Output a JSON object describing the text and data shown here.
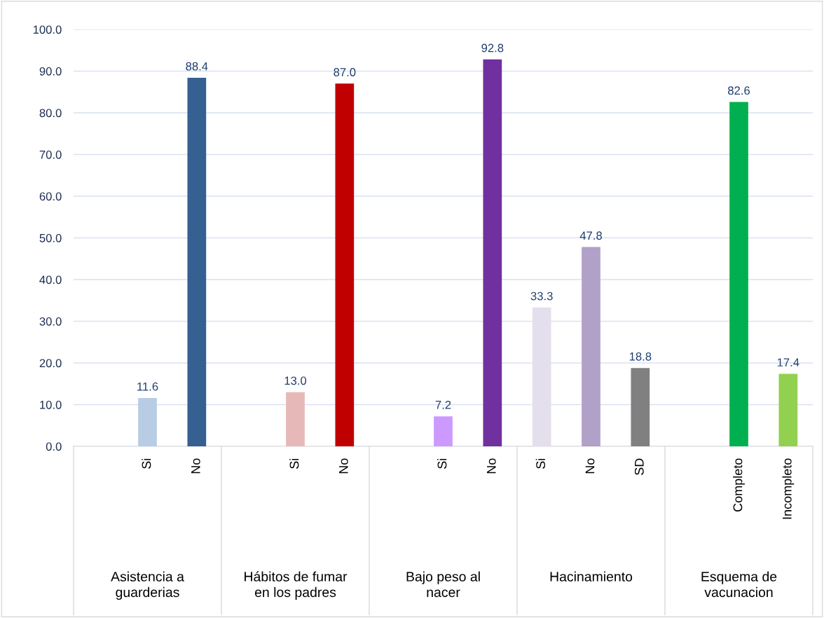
{
  "chart_data": {
    "type": "bar",
    "categories": [
      null,
      "Si",
      "No",
      null,
      "Si",
      "No",
      null,
      "Si",
      "No",
      "Si",
      "No",
      "SD",
      null,
      "Completo",
      "Incompleto"
    ],
    "values": [
      null,
      11.6,
      88.4,
      null,
      13.0,
      87.0,
      null,
      7.2,
      92.8,
      33.3,
      47.8,
      18.8,
      null,
      82.6,
      17.4
    ],
    "colors": [
      "#b8cce4",
      "#b8cce4",
      "#366092",
      "#e6b9b8",
      "#e6b9b8",
      "#c00000",
      "#cc99ff",
      "#cc99ff",
      "#7030a0",
      "#e4dfec",
      "#b1a0c7",
      "#808080",
      "#00b050",
      "#00b050",
      "#92d050"
    ],
    "annotations": [
      "Asistencia a\nguarderias",
      "Hábitos de fumar\nen los padres",
      "Bajo peso al\nnacer",
      "Hacinamiento",
      "Esquema de\nvacunacion"
    ],
    "ylim": [
      0,
      100
    ],
    "yticks": [
      {
        "value": 0,
        "label": "0.0"
      },
      {
        "value": 10,
        "label": "10.0"
      },
      {
        "value": 20,
        "label": "20.0"
      },
      {
        "value": 30,
        "label": "30.0"
      },
      {
        "value": 40,
        "label": "40.0"
      },
      {
        "value": 50,
        "label": "50.0"
      },
      {
        "value": 60,
        "label": "60.0"
      },
      {
        "value": 70,
        "label": "70.0"
      },
      {
        "value": 80,
        "label": "80.0"
      },
      {
        "value": 90,
        "label": "90.0"
      },
      {
        "value": 100,
        "label": "100.0"
      }
    ],
    "value_labels": [
      null,
      "11.6",
      "88.4",
      null,
      "13.0",
      "87.0",
      null,
      "7.2",
      "92.8",
      "33.3",
      "47.8",
      "18.8",
      null,
      "82.6",
      "17.4"
    ],
    "grid": "y"
  }
}
